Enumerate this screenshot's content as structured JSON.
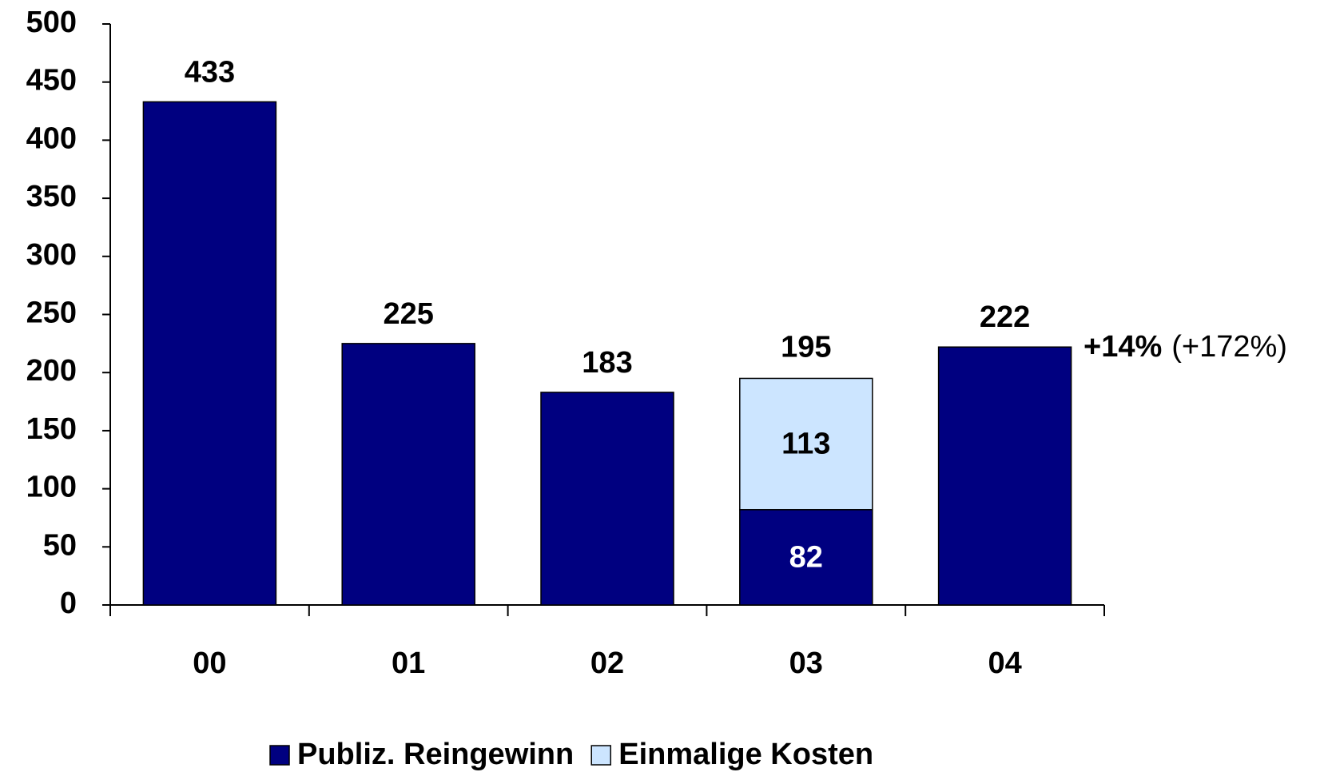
{
  "chart_data": {
    "type": "bar",
    "stacked": true,
    "categories": [
      "00",
      "01",
      "02",
      "03",
      "04"
    ],
    "series": [
      {
        "name": "Publiz. Reingewinn",
        "color": "#000080",
        "values": [
          433,
          225,
          183,
          82,
          222
        ]
      },
      {
        "name": "Einmalige Kosten",
        "color": "#cce5ff",
        "values": [
          null,
          null,
          null,
          113,
          null
        ]
      }
    ],
    "totals": [
      null,
      null,
      null,
      195,
      null
    ],
    "annotation": {
      "bold": "+14%",
      "normal": "(+172%)"
    },
    "ylim": [
      0,
      500
    ],
    "yticks": [
      0,
      50,
      100,
      150,
      200,
      250,
      300,
      350,
      400,
      450,
      500
    ],
    "grid": false,
    "legend": "bottom"
  }
}
